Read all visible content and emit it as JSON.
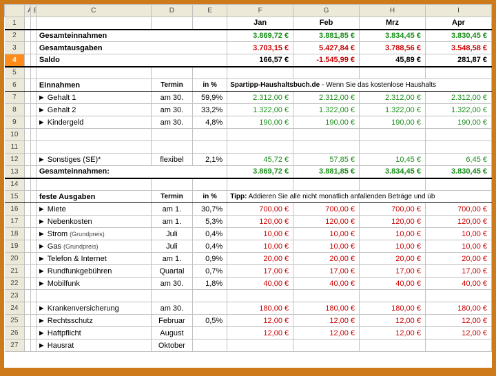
{
  "colors": {
    "pos": "#1a8f1a",
    "neg": "#cc0000",
    "neutral": "#000000",
    "frame": "#cc7a1a",
    "rowHdrBg": "#ece9d8",
    "selRowBg": "#ff8c1a",
    "grid": "#c0c0c0"
  },
  "colHeaders": [
    "",
    "A",
    "B",
    "C",
    "D",
    "E",
    "F",
    "G",
    "H",
    "I"
  ],
  "months": [
    "Jan",
    "Feb",
    "Mrz",
    "Apr"
  ],
  "summary": [
    {
      "row": 2,
      "label": "Gesamteinnahmen",
      "bold": true,
      "style": "green",
      "vals": [
        "3.869,72 €",
        "3.881,85 €",
        "3.834,45 €",
        "3.830,45 €"
      ]
    },
    {
      "row": 3,
      "label": "Gesamtausgaben",
      "bold": true,
      "style": "red",
      "vals": [
        "3.703,15 €",
        "5.427,84 €",
        "3.788,56 €",
        "3.548,58 €"
      ]
    },
    {
      "row": 4,
      "label": "Saldo",
      "bold": true,
      "style": "mix",
      "vals": [
        "166,57 €",
        "-1.545,99 €",
        "45,89 €",
        "281,87 €"
      ],
      "sel": true
    }
  ],
  "einnahmenHeader": {
    "row": 6,
    "label": "Einnahmen",
    "termin": "Termin",
    "pct": "in %",
    "note": "<b>Spartipp-Haushaltsbuch.de</b> - Wenn Sie das kostenlose Haushalts"
  },
  "einnahmen": [
    {
      "row": 7,
      "label": "► Gehalt 1",
      "termin": "am 30.",
      "pct": "59,9%",
      "vals": [
        "2.312,00 €",
        "2.312,00 €",
        "2.312,00 €",
        "2.312,00 €"
      ]
    },
    {
      "row": 8,
      "label": "► Gehalt 2",
      "termin": "am 30.",
      "pct": "33,2%",
      "vals": [
        "1.322,00 €",
        "1.322,00 €",
        "1.322,00 €",
        "1.322,00 €"
      ]
    },
    {
      "row": 9,
      "label": "► Kindergeld",
      "termin": "am 30.",
      "pct": "4,8%",
      "vals": [
        "190,00 €",
        "190,00 €",
        "190,00 €",
        "190,00 €"
      ]
    }
  ],
  "einnahmenBlank": [
    10,
    11
  ],
  "sonstiges": {
    "row": 12,
    "label": "► Sonstiges (SE)*",
    "termin": "flexibel",
    "pct": "2,1%",
    "vals": [
      "45,72 €",
      "57,85 €",
      "10,45 €",
      "6,45 €"
    ]
  },
  "einnahmenSum": {
    "row": 13,
    "label": "Gesamteinnahmen:",
    "vals": [
      "3.869,72 €",
      "3.881,85 €",
      "3.834,45 €",
      "3.830,45 €"
    ]
  },
  "row14": 14,
  "ausgabenHeader": {
    "row": 15,
    "label": "feste Ausgaben",
    "termin": "Termin",
    "pct": "in %",
    "note": "<b>Tipp:</b> Addieren Sie alle nicht monatlich anfallenden Beträge und üb"
  },
  "ausgaben": [
    {
      "row": 16,
      "label": "► Miete",
      "termin": "am 1.",
      "pct": "30,7%",
      "vals": [
        "700,00 €",
        "700,00 €",
        "700,00 €",
        "700,00 €"
      ]
    },
    {
      "row": 17,
      "label": "► Nebenkosten",
      "termin": "am 1.",
      "pct": "5,3%",
      "vals": [
        "120,00 €",
        "120,00 €",
        "120,00 €",
        "120,00 €"
      ]
    },
    {
      "row": 18,
      "label": "► Strom <span class='small'>(Grundpreis)</span>",
      "termin": "Juli",
      "pct": "0,4%",
      "vals": [
        "10,00 €",
        "10,00 €",
        "10,00 €",
        "10,00 €"
      ]
    },
    {
      "row": 19,
      "label": "► Gas <span class='small'>(Grundpreis)</span>",
      "termin": "Juli",
      "pct": "0,4%",
      "vals": [
        "10,00 €",
        "10,00 €",
        "10,00 €",
        "10,00 €"
      ]
    },
    {
      "row": 20,
      "label": "► Telefon & Internet",
      "termin": "am 1.",
      "pct": "0,9%",
      "vals": [
        "20,00 €",
        "20,00 €",
        "20,00 €",
        "20,00 €"
      ]
    },
    {
      "row": 21,
      "label": "► Rundfunkgebühren",
      "termin": "Quartal",
      "pct": "0,7%",
      "vals": [
        "17,00 €",
        "17,00 €",
        "17,00 €",
        "17,00 €"
      ]
    },
    {
      "row": 22,
      "label": "► Mobilfunk",
      "termin": "am 30.",
      "pct": "1,8%",
      "vals": [
        "40,00 €",
        "40,00 €",
        "40,00 €",
        "40,00 €"
      ]
    }
  ],
  "ausgabenBlank": [
    23
  ],
  "ausgaben2": [
    {
      "row": 24,
      "label": "► Krankenversicherung",
      "termin": "am 30.",
      "pct": "",
      "vals": [
        "180,00 €",
        "180,00 €",
        "180,00 €",
        "180,00 €"
      ]
    },
    {
      "row": 25,
      "label": "► Rechtsschutz",
      "termin": "Februar",
      "pct": "0,5%",
      "vals": [
        "12,00 €",
        "12,00 €",
        "12,00 €",
        "12,00 €"
      ]
    },
    {
      "row": 26,
      "label": "► Haftpflicht",
      "termin": "August",
      "pct": "",
      "vals": [
        "12,00 €",
        "12,00 €",
        "12,00 €",
        "12,00 €"
      ]
    },
    {
      "row": 27,
      "label": "► Hausrat",
      "termin": "Oktober",
      "pct": "",
      "vals": [
        "",
        "",
        "",
        ""
      ]
    }
  ]
}
